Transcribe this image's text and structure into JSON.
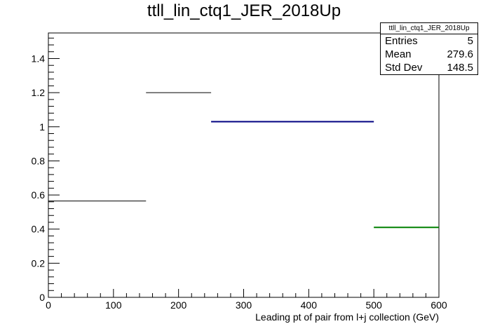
{
  "chart_data": {
    "type": "histogram",
    "title": "ttll_lin_ctq1_JER_2018Up",
    "xlabel": "Leading pt of pair from l+j collection (GeV)",
    "ylabel": "",
    "xlim": [
      0,
      600
    ],
    "ylim": [
      0,
      1.55
    ],
    "x_ticks": [
      "0",
      "100",
      "200",
      "300",
      "400",
      "500",
      "600"
    ],
    "y_ticks": [
      "0",
      "0.2",
      "0.4",
      "0.6",
      "0.8",
      "1",
      "1.2",
      "1.4"
    ],
    "grid": false,
    "bins": [
      {
        "x0": 0,
        "x1": 150,
        "value": 0.565,
        "color": "#000000"
      },
      {
        "x0": 150,
        "x1": 250,
        "value": 1.2,
        "color": "#000000"
      },
      {
        "x0": 250,
        "x1": 500,
        "value": 1.03,
        "color": "#000080"
      },
      {
        "x0": 500,
        "x1": 600,
        "value": 0.41,
        "color": "#008000"
      }
    ],
    "stats": {
      "title": "ttll_lin_ctq1_JER_2018Up",
      "entries_label": "Entries",
      "entries": "5",
      "mean_label": "Mean",
      "mean": "279.6",
      "stddev_label": "Std Dev",
      "stddev": "148.5"
    }
  }
}
